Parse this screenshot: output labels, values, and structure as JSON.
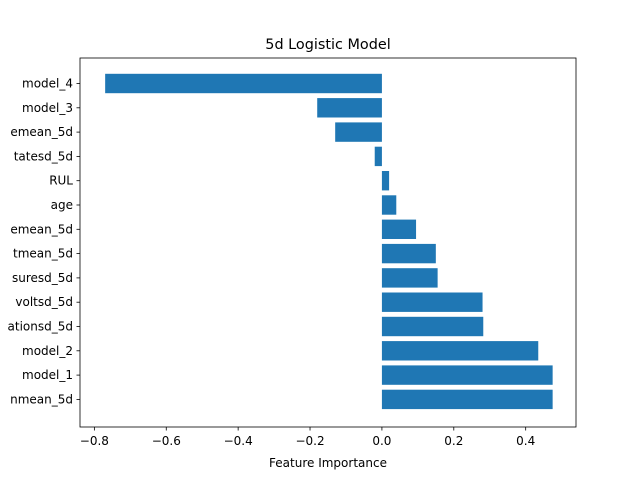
{
  "chart_data": {
    "type": "bar",
    "orientation": "horizontal",
    "title": "5d Logistic Model",
    "xlabel": "Feature Importance",
    "ylabel": "",
    "xlim": [
      -0.84,
      0.54
    ],
    "xticks": [
      -0.8,
      -0.6,
      -0.4,
      -0.2,
      0.0,
      0.2,
      0.4
    ],
    "xtick_labels": [
      "−0.8",
      "−0.6",
      "−0.4",
      "−0.2",
      "0.0",
      "0.2",
      "0.4"
    ],
    "grid": false,
    "bar_color": "#1f77b4",
    "categories": [
      "model_4",
      "model_3",
      "emean_5d",
      "tatesd_5d",
      "RUL",
      "age",
      "emean_5d",
      "tmean_5d",
      "suresd_5d",
      "voltsd_5d",
      "ationsd_5d",
      "model_2",
      "model_1",
      "nmean_5d"
    ],
    "values": [
      -0.77,
      -0.18,
      -0.13,
      -0.02,
      0.02,
      0.04,
      0.095,
      0.15,
      0.155,
      0.28,
      0.282,
      0.435,
      0.475,
      0.475
    ]
  }
}
